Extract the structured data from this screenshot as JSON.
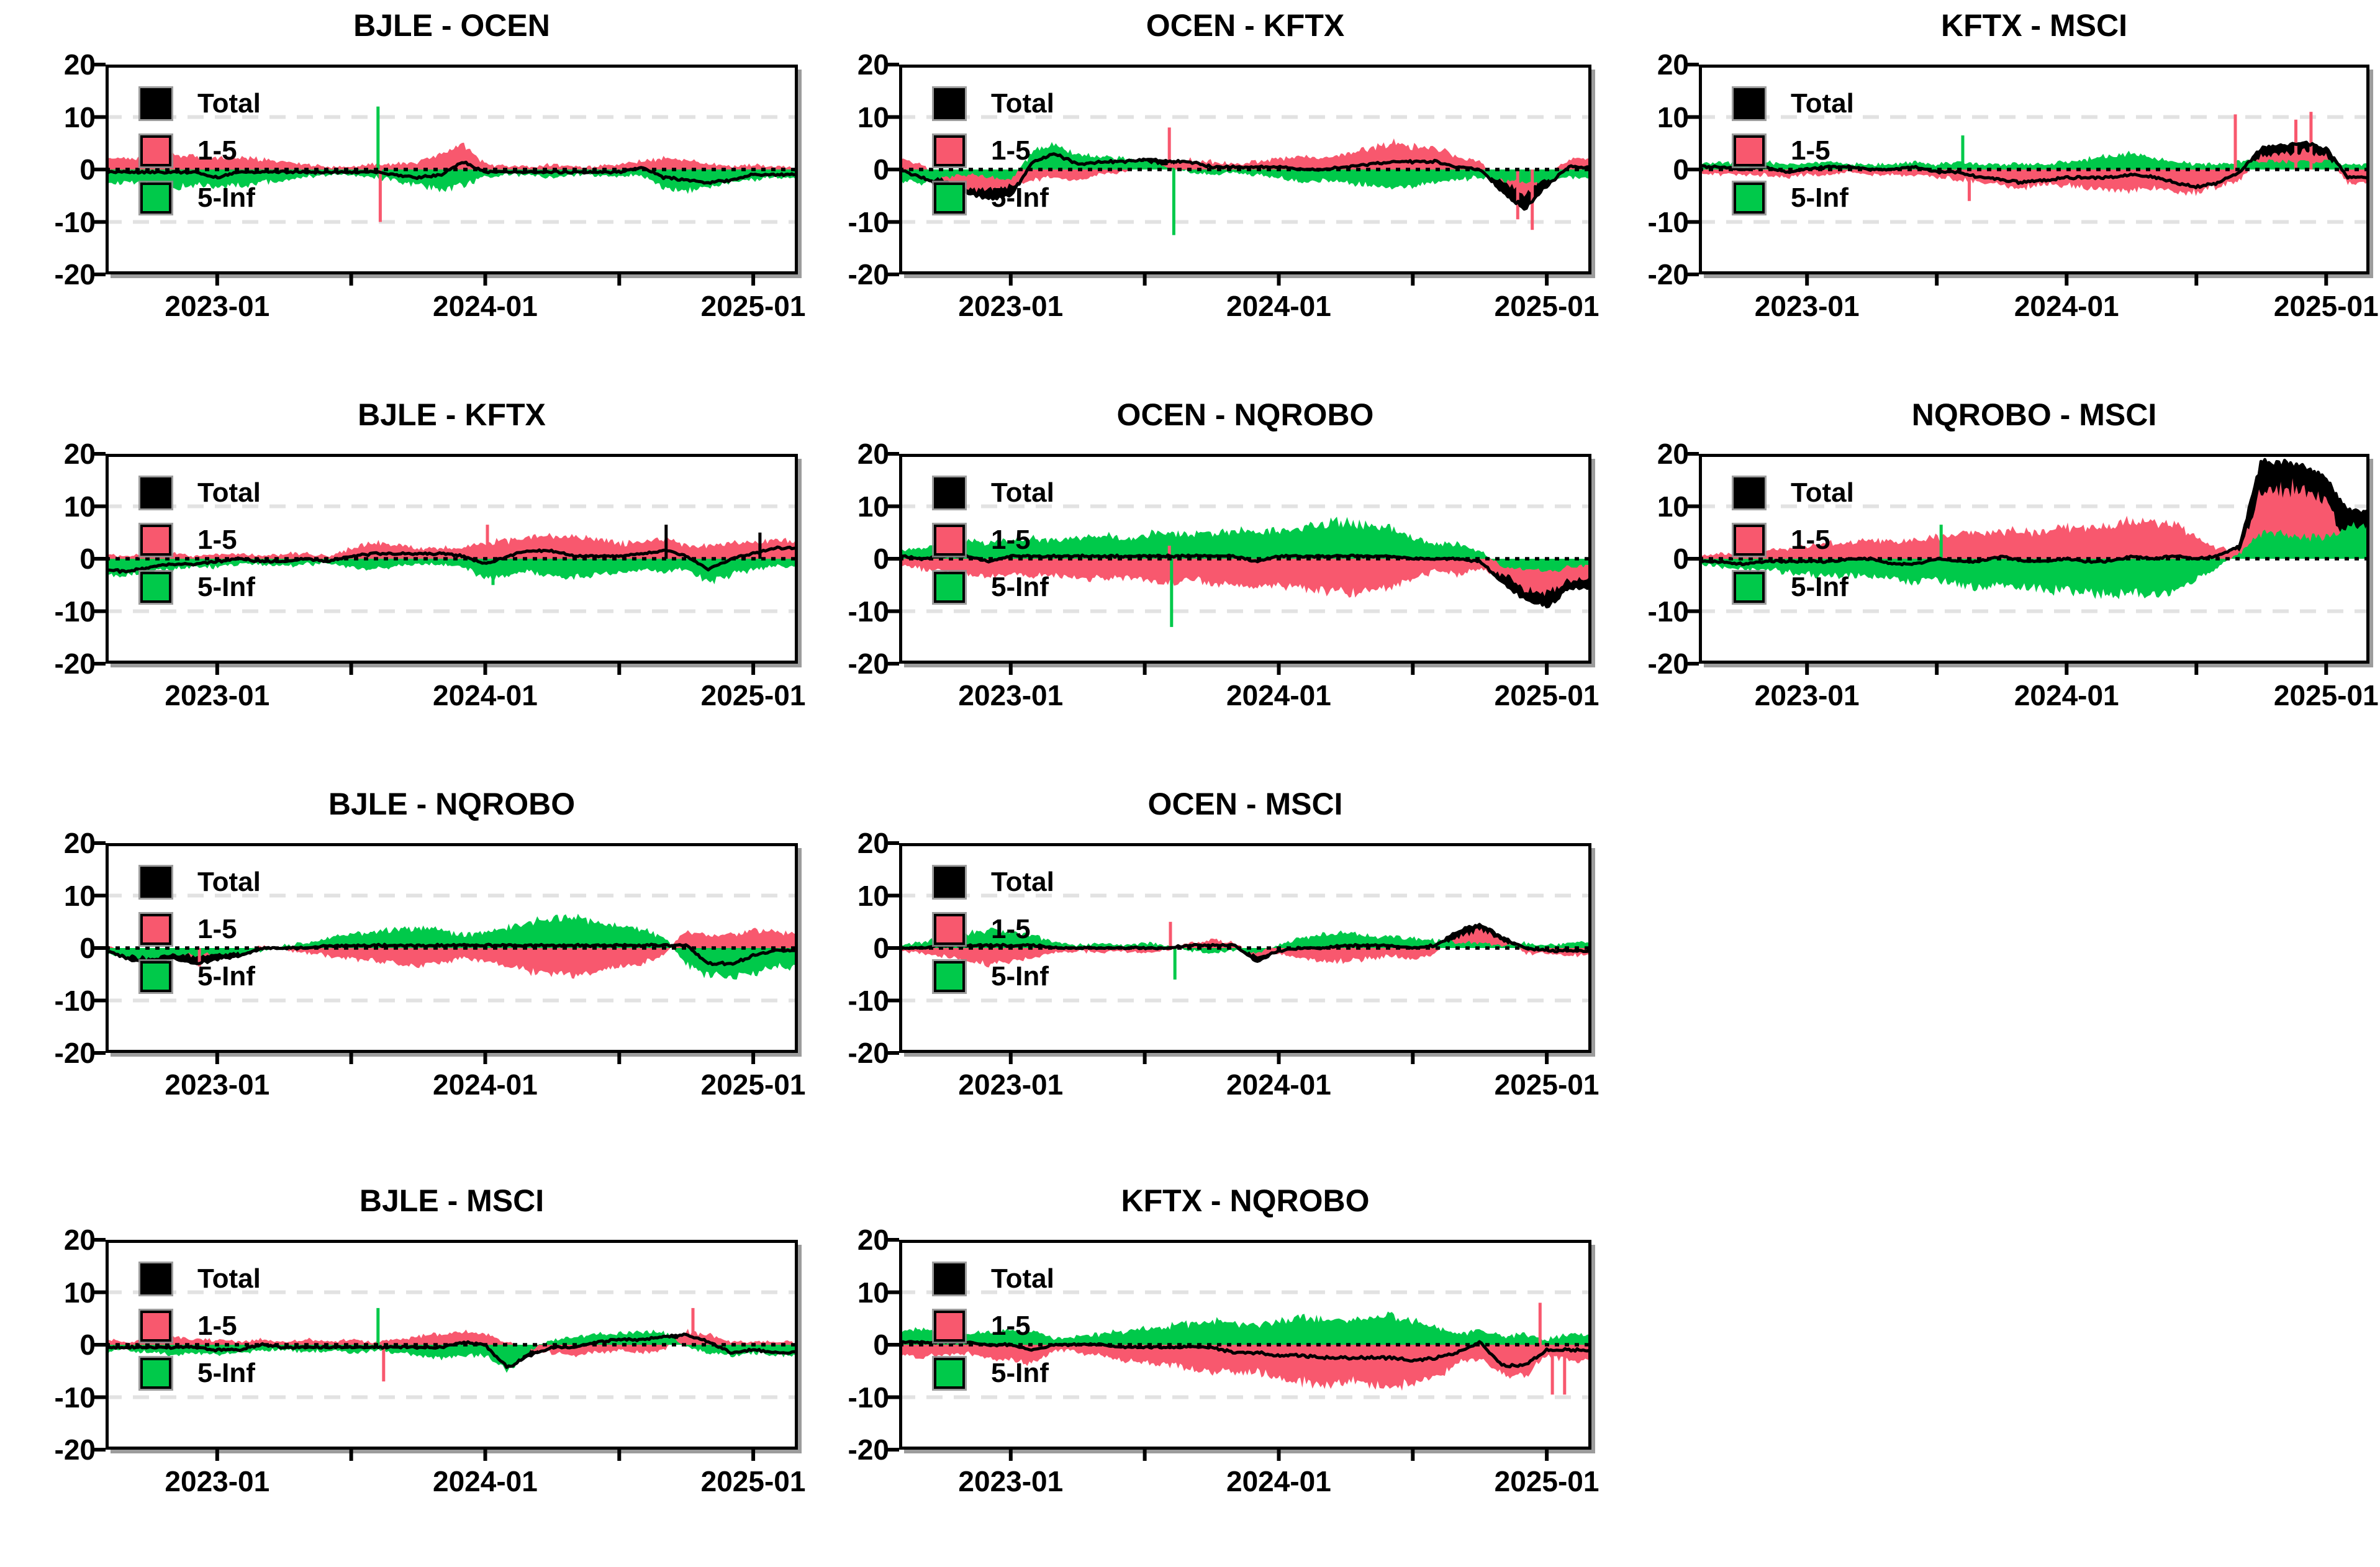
{
  "colors": {
    "total": "#000000",
    "band_1_5": "#f8586e",
    "band_5_inf": "#00c94a",
    "grid": "#e2e2e2",
    "zero_line": "#000000",
    "axis": "#000000",
    "text": "#000000",
    "background": "#ffffff"
  },
  "legend": {
    "entries": [
      {
        "label": "Total",
        "color": "#000000"
      },
      {
        "label": "1-5",
        "color": "#f8586e"
      },
      {
        "label": "5-Inf",
        "color": "#00c94a"
      }
    ]
  },
  "axes": {
    "y_ticks": [
      "20",
      "10",
      "0",
      "-10",
      "-20"
    ],
    "y_tick_values": [
      20,
      10,
      0,
      -10,
      -20
    ],
    "y_range": [
      -20,
      20
    ],
    "grid_y": [
      10,
      -10
    ],
    "zero_line_y": 0,
    "x_tick_labels": [
      "2023-01",
      "2024-01",
      "2025-01"
    ],
    "x_label_months": [
      5,
      17,
      29
    ],
    "x_tick_months": [
      5,
      11,
      17,
      23,
      29
    ],
    "x_start_month": "2022-08",
    "x_total_months": 31
  },
  "chart_data": [
    {
      "type": "area",
      "title": "BJLE - OCEN",
      "total_series": {
        "name": "Total",
        "definition": "sum of 1-5 and 5-Inf"
      },
      "series": [
        {
          "name": "1-5",
          "color": "#f8586e",
          "values": [
            2,
            2,
            2.5,
            3,
            2.5,
            2,
            2.5,
            2,
            1.5,
            1,
            0.5,
            0.5,
            1,
            1,
            1.5,
            3,
            4.5,
            1,
            0.5,
            0.5,
            1,
            0.5,
            0.5,
            1,
            1.5,
            2,
            2,
            1,
            0.5,
            1,
            0.5
          ]
        },
        {
          "name": "5-Inf",
          "color": "#00c94a",
          "values": [
            -2.5,
            -2.5,
            -3,
            -3.5,
            -3,
            -3.5,
            -3,
            -2.5,
            -2,
            -1.5,
            -1,
            -1,
            -1.5,
            -2,
            -3,
            -4,
            -3,
            -1.5,
            -1,
            -1,
            -1.5,
            -1,
            -1,
            -1.5,
            -1,
            -3.5,
            -4,
            -3.5,
            -2.5,
            -2,
            -1.5
          ]
        }
      ],
      "spikes": [
        {
          "series": "5-Inf",
          "month": 12.2,
          "value": 12
        },
        {
          "series": "1-5",
          "month": 12.3,
          "value": -10
        }
      ]
    },
    {
      "type": "area",
      "title": "OCEN - KFTX",
      "total_series": {
        "name": "Total",
        "definition": "sum of 1-5 and 5-Inf"
      },
      "series": [
        {
          "name": "1-5",
          "color": "#f8586e",
          "values": [
            2,
            1,
            -2,
            -3.5,
            -4,
            -3,
            -2,
            -1.5,
            -2,
            -1,
            -0.5,
            0.5,
            1,
            2,
            1.5,
            1,
            1.5,
            2,
            2.5,
            2,
            3,
            4,
            5,
            4.5,
            4,
            2.5,
            1.5,
            -2,
            -5,
            -1,
            2
          ]
        },
        {
          "name": "5-Inf",
          "color": "#00c94a",
          "values": [
            -2,
            -2.5,
            -1.5,
            -1,
            -1.5,
            -2,
            3.5,
            4.5,
            3,
            2.5,
            2,
            1.5,
            0.5,
            -0.5,
            -1,
            -0.5,
            -1,
            -1.5,
            -2.5,
            -2,
            -2.5,
            -3,
            -3.5,
            -3,
            -2.5,
            -2,
            -1.5,
            -2,
            -2.5,
            -2,
            -1.5
          ]
        }
      ],
      "spikes": [
        {
          "series": "1-5",
          "month": 12.1,
          "value": 8
        },
        {
          "series": "5-Inf",
          "month": 12.3,
          "value": -12.5
        },
        {
          "series": "1-5",
          "month": 27.7,
          "value": -9.5
        },
        {
          "series": "1-5",
          "month": 28.35,
          "value": -11.5
        }
      ]
    },
    {
      "type": "area",
      "title": "KFTX - MSCI",
      "total_series": {
        "name": "Total",
        "definition": "sum of 1-5 and 5-Inf"
      },
      "series": [
        {
          "name": "1-5",
          "color": "#f8586e",
          "values": [
            -0.5,
            -1,
            -1,
            -1,
            -1.5,
            -1,
            -1,
            -0.5,
            -1,
            -1,
            -1,
            -1.5,
            -2,
            -2.5,
            -3,
            -3.5,
            -3,
            -3,
            -3.5,
            -4,
            -4,
            -3.5,
            -4,
            -4.5,
            -3.5,
            -2,
            2.5,
            3,
            3.5,
            2.5,
            -2.5
          ]
        },
        {
          "name": "5-Inf",
          "color": "#00c94a",
          "values": [
            1,
            1.5,
            1,
            1.5,
            1,
            1,
            1.5,
            1,
            1,
            1,
            1.5,
            1,
            1.5,
            1,
            1,
            1,
            1,
            1.5,
            2,
            2.5,
            3,
            2,
            1.5,
            1,
            1,
            1.5,
            1.5,
            1.5,
            1.5,
            1.5,
            1
          ]
        }
      ],
      "spikes": [
        {
          "series": "5-Inf",
          "month": 12.2,
          "value": 6.5
        },
        {
          "series": "1-5",
          "month": 12.5,
          "value": -6
        },
        {
          "series": "1-5",
          "month": 24.8,
          "value": 10.5
        },
        {
          "series": "1-5",
          "month": 27.6,
          "value": 9.5
        },
        {
          "series": "1-5",
          "month": 28.3,
          "value": 11
        }
      ]
    },
    {
      "type": "area",
      "title": "BJLE - KFTX",
      "total_series": {
        "name": "Total",
        "definition": "sum of 1-5 and 5-Inf"
      },
      "series": [
        {
          "name": "1-5",
          "color": "#f8586e",
          "values": [
            1,
            0.5,
            1,
            1,
            0.5,
            1,
            1,
            0.5,
            1,
            1,
            0.5,
            2,
            3,
            2.5,
            2,
            2,
            2,
            3,
            3.5,
            4,
            4.5,
            4,
            3.5,
            3,
            3,
            4,
            2.5,
            2.5,
            3,
            3,
            3.5
          ]
        },
        {
          "name": "5-Inf",
          "color": "#00c94a",
          "values": [
            -3,
            -3,
            -2.5,
            -2,
            -1.5,
            -1.5,
            -1,
            -1,
            -1.5,
            -1,
            -1,
            -1.5,
            -2,
            -1.5,
            -1,
            -1,
            -1.5,
            -4,
            -3,
            -2.5,
            -3,
            -3.5,
            -3,
            -2.5,
            -2,
            -2.5,
            -2,
            -4.5,
            -3,
            -2,
            -1.5
          ]
        }
      ],
      "spikes": [
        {
          "series": "1-5",
          "month": 17.1,
          "value": 6.5
        },
        {
          "series": "5-Inf",
          "month": 17.35,
          "value": -5
        },
        {
          "series": "Total",
          "month": 25.1,
          "value": 6.5
        },
        {
          "series": "Total",
          "month": 29.3,
          "value": 5
        }
      ]
    },
    {
      "type": "area",
      "title": "OCEN - NQROBO",
      "total_series": {
        "name": "Total",
        "definition": "sum of 1-5 and 5-Inf"
      },
      "series": [
        {
          "name": "1-5",
          "color": "#f8586e",
          "values": [
            -1,
            -2,
            -2.5,
            -3,
            -3.5,
            -3,
            -3.5,
            -3,
            -3.5,
            -4,
            -3.5,
            -4,
            -4.5,
            -4,
            -4.5,
            -5,
            -5.5,
            -5,
            -5.5,
            -6,
            -6.5,
            -6,
            -5.5,
            -4,
            -2.5,
            -3,
            -2,
            -3,
            -5.5,
            -6.5,
            -4
          ]
        },
        {
          "name": "5-Inf",
          "color": "#00c94a",
          "values": [
            1.5,
            2,
            3,
            3.5,
            3,
            3.5,
            4,
            3.5,
            4,
            4.5,
            4,
            4.5,
            5,
            4.5,
            5,
            5.5,
            5,
            5.5,
            6,
            6.5,
            7,
            6.5,
            6,
            4,
            2.5,
            3,
            1.5,
            -1.5,
            -2,
            -2.5,
            -1.5
          ]
        }
      ],
      "spikes": [
        {
          "series": "5-Inf",
          "month": 12.2,
          "value": -13
        },
        {
          "series": "1-5",
          "month": 12.1,
          "value": 2.5
        }
      ]
    },
    {
      "type": "area",
      "title": "NQROBO - MSCI",
      "total_series": {
        "name": "Total",
        "definition": "sum of 1-5 and 5-Inf"
      },
      "series": [
        {
          "name": "1-5",
          "color": "#f8586e",
          "values": [
            0.5,
            1,
            1,
            1.5,
            2,
            2.5,
            3,
            3,
            3.5,
            3,
            3.5,
            4,
            4.5,
            5,
            5.5,
            5,
            5.5,
            6,
            6,
            6.5,
            7,
            7,
            6.5,
            4,
            2,
            1.5,
            13,
            14,
            13,
            11,
            3
          ]
        },
        {
          "name": "5-Inf",
          "color": "#00c94a",
          "values": [
            -1,
            -1.5,
            -2,
            -2,
            -2.5,
            -3,
            -3.5,
            -3,
            -3.5,
            -4,
            -4.5,
            -4,
            -5,
            -5.5,
            -5,
            -5.5,
            -6,
            -6,
            -6.5,
            -7,
            -6.5,
            -7,
            -6,
            -4,
            -1.5,
            1,
            5,
            4.5,
            4,
            4,
            6
          ]
        }
      ],
      "spikes": [
        {
          "series": "5-Inf",
          "month": 11.2,
          "value": 6.5
        }
      ]
    },
    {
      "type": "area",
      "title": "BJLE - NQROBO",
      "total_series": {
        "name": "Total",
        "definition": "sum of 1-5 and 5-Inf"
      },
      "series": [
        {
          "name": "1-5",
          "color": "#f8586e",
          "values": [
            0.5,
            -0.5,
            -1,
            -1,
            -1.5,
            -1,
            -0.5,
            0.5,
            -0.5,
            -1,
            -1.5,
            -2,
            -2.5,
            -3,
            -3.5,
            -3,
            -2,
            -2.5,
            -3.5,
            -4.5,
            -5,
            -5.5,
            -4.5,
            -3.5,
            -3,
            -1.5,
            3.5,
            2.5,
            2.5,
            3.5,
            3
          ]
        },
        {
          "name": "5-Inf",
          "color": "#00c94a",
          "values": [
            -1,
            -1.5,
            -2,
            -1,
            -1.5,
            -1,
            -1,
            -0.5,
            0.5,
            1,
            2,
            2.5,
            3,
            3.5,
            4,
            3.5,
            2.5,
            3,
            4,
            5,
            5.5,
            6,
            5,
            4,
            3.5,
            2,
            -3,
            -5.5,
            -5.5,
            -5,
            -3.5
          ]
        }
      ],
      "spikes": [
        {
          "series": "1-5",
          "month": 4.2,
          "value": -3.5
        }
      ]
    },
    {
      "type": "area",
      "title": "OCEN - MSCI",
      "total_series": {
        "name": "Total",
        "definition": "sum of 1-5 and 5-Inf"
      },
      "series": [
        {
          "name": "1-5",
          "color": "#f8586e",
          "values": [
            -0.5,
            -1,
            -1.5,
            -2.5,
            -3,
            -2.5,
            -2,
            -1,
            -0.5,
            -1,
            -0.5,
            -1,
            -0.5,
            1,
            1.5,
            1,
            -1.5,
            -1,
            -2,
            -2.5,
            -2.5,
            -2,
            -1.5,
            -2,
            -1,
            2,
            3.5,
            1.5,
            -1,
            -1,
            -1.5
          ]
        },
        {
          "name": "5-Inf",
          "color": "#00c94a",
          "values": [
            0.5,
            1,
            2,
            3,
            3.5,
            3,
            2.5,
            1,
            0.5,
            1,
            0.5,
            1,
            0.5,
            -0.5,
            -1,
            -0.5,
            -1,
            0.5,
            2,
            2.5,
            3,
            2.5,
            2,
            2,
            1.5,
            1,
            1,
            0.5,
            1,
            0.5,
            1
          ]
        }
      ],
      "spikes": [
        {
          "series": "1-5",
          "month": 12.15,
          "value": 5
        },
        {
          "series": "5-Inf",
          "month": 12.35,
          "value": -6
        }
      ]
    },
    {
      "type": "area",
      "title": "BJLE - MSCI",
      "total_series": {
        "name": "Total",
        "definition": "sum of 1-5 and 5-Inf"
      },
      "series": [
        {
          "name": "1-5",
          "color": "#f8586e",
          "values": [
            1,
            0.5,
            1,
            1.5,
            1,
            1,
            0.5,
            1,
            0.5,
            1,
            0.5,
            1,
            0.5,
            1,
            1.5,
            2,
            2.5,
            2,
            0.5,
            -1,
            -1.5,
            -2,
            -1.5,
            -1,
            -1.5,
            -1,
            2.5,
            2,
            0.5,
            0.5,
            0.5
          ]
        },
        {
          "name": "5-Inf",
          "color": "#00c94a",
          "values": [
            -1.5,
            -1,
            -1.5,
            -2,
            -1.5,
            -2,
            -1.5,
            -1,
            -1,
            -1.5,
            -1,
            -1.5,
            -1,
            -1.5,
            -2,
            -2.5,
            -2,
            -2,
            -5,
            -1,
            1,
            1.5,
            2,
            2,
            2.5,
            2.5,
            -0.5,
            -1.5,
            -2,
            -1.5,
            -2
          ]
        }
      ],
      "spikes": [
        {
          "series": "5-Inf",
          "month": 12.2,
          "value": 7
        },
        {
          "series": "1-5",
          "month": 12.45,
          "value": -7
        },
        {
          "series": "1-5",
          "month": 26.3,
          "value": 7
        }
      ]
    },
    {
      "type": "area",
      "title": "KFTX - NQROBO",
      "total_series": {
        "name": "Total",
        "definition": "sum of 1-5 and 5-Inf"
      },
      "series": [
        {
          "name": "1-5",
          "color": "#f8586e",
          "values": [
            -2,
            -2.5,
            -2,
            -1.5,
            -2.5,
            -3,
            -3.5,
            -1,
            -1.5,
            -2,
            -3,
            -3.5,
            -4,
            -4.5,
            -5,
            -5.5,
            -5,
            -6.5,
            -7,
            -7.5,
            -7,
            -7.5,
            -8,
            -7.5,
            -6,
            -3.5,
            -2.5,
            -5.5,
            -6,
            -2,
            -3
          ]
        },
        {
          "name": "5-Inf",
          "color": "#00c94a",
          "values": [
            2.5,
            3,
            2.5,
            2,
            2.5,
            3,
            2.5,
            1,
            1.5,
            2,
            2.5,
            3,
            3.5,
            4,
            4.5,
            4,
            3.5,
            4.5,
            5,
            5,
            4.5,
            5,
            5.5,
            4.5,
            3.5,
            2,
            3,
            1.5,
            2,
            1,
            2
          ]
        }
      ],
      "spikes": [
        {
          "series": "1-5",
          "month": 28.7,
          "value": 8
        },
        {
          "series": "1-5",
          "month": 29.25,
          "value": -9.5
        },
        {
          "series": "1-5",
          "month": 29.8,
          "value": -9.5
        }
      ]
    }
  ]
}
